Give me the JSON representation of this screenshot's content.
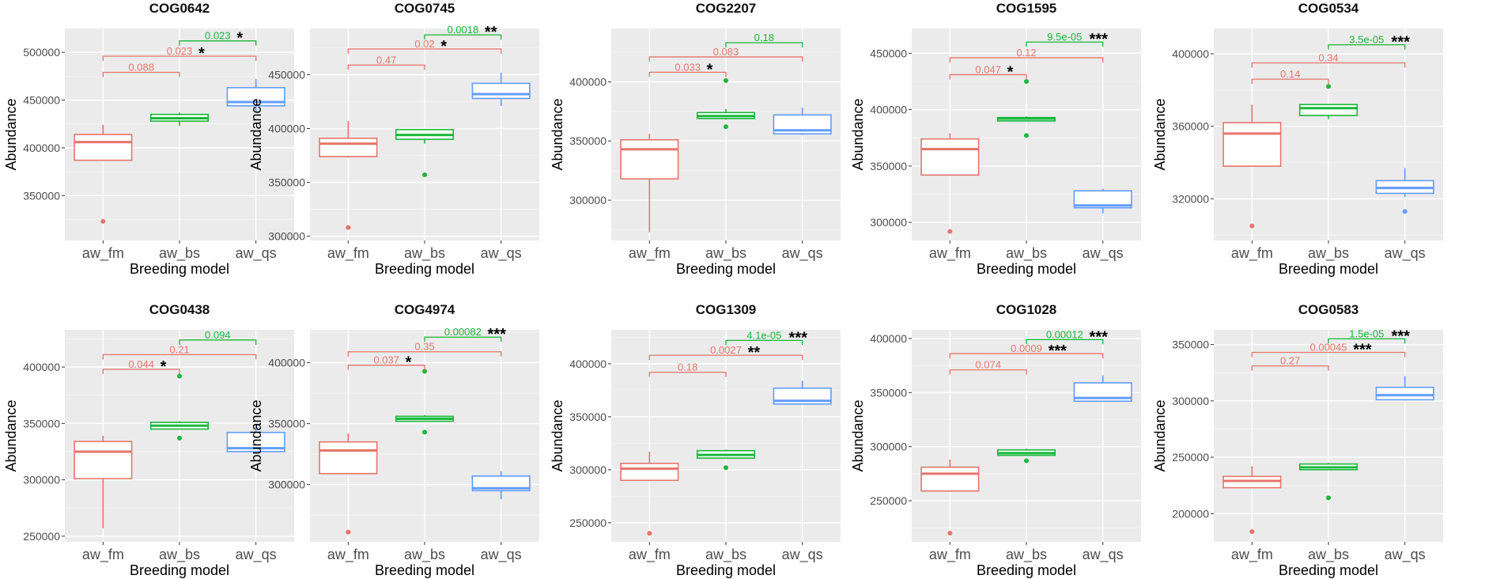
{
  "colors": {
    "aw_fm": "#E7756C",
    "aw_bs": "#18B83A",
    "aw_qs": "#619CFF",
    "panel": "#EBEBEB",
    "grid": "#FFFFFF"
  },
  "chart_data": [
    {
      "type": "box",
      "title": "COG0642",
      "xlabel": "Breeding model",
      "ylabel": "Abundance",
      "categories": [
        "aw_fm",
        "aw_bs",
        "aw_qs"
      ],
      "ylim": [
        303000,
        525000
      ],
      "yticks": [
        350000,
        400000,
        450000,
        500000
      ],
      "yticklabels": [
        "350000",
        "400000",
        "450000",
        "500000"
      ],
      "boxes": [
        {
          "min": 387000,
          "q1": 387000,
          "median": 406000,
          "q3": 414000,
          "max": 424000,
          "outliers": [
            323000
          ]
        },
        {
          "min": 423000,
          "q1": 428000,
          "median": 431000,
          "q3": 435000,
          "max": 437000,
          "outliers": []
        },
        {
          "min": 438000,
          "q1": 444000,
          "median": 448000,
          "q3": 463000,
          "max": 472000,
          "outliers": []
        }
      ],
      "comparisons": [
        {
          "from": "aw_fm",
          "to": "aw_bs",
          "p": "0.088",
          "sig": "",
          "color": "#E7756C",
          "y": 479000
        },
        {
          "from": "aw_fm",
          "to": "aw_qs",
          "p": "0.023",
          "sig": "*",
          "color": "#E7756C",
          "y": 496000
        },
        {
          "from": "aw_bs",
          "to": "aw_qs",
          "p": "0.023",
          "sig": "*",
          "color": "#18B83A",
          "y": 512000
        }
      ]
    },
    {
      "type": "box",
      "title": "COG0745",
      "xlabel": "Breeding model",
      "ylabel": "Abundance",
      "categories": [
        "aw_fm",
        "aw_bs",
        "aw_qs"
      ],
      "ylim": [
        296000,
        493000
      ],
      "yticks": [
        300000,
        350000,
        400000,
        450000
      ],
      "yticklabels": [
        "300000",
        "350000",
        "400000",
        "450000"
      ],
      "boxes": [
        {
          "min": 373000,
          "q1": 374000,
          "median": 386000,
          "q3": 391000,
          "max": 407000,
          "outliers": [
            308000
          ]
        },
        {
          "min": 386000,
          "q1": 390000,
          "median": 394000,
          "q3": 399000,
          "max": 399000,
          "outliers": [
            357000
          ]
        },
        {
          "min": 421000,
          "q1": 428000,
          "median": 432000,
          "q3": 442000,
          "max": 452000,
          "outliers": []
        }
      ],
      "comparisons": [
        {
          "from": "aw_fm",
          "to": "aw_bs",
          "p": "0.47",
          "sig": "",
          "color": "#E7756C",
          "y": 459000
        },
        {
          "from": "aw_fm",
          "to": "aw_qs",
          "p": "0.02",
          "sig": "*",
          "color": "#E7756C",
          "y": 474000
        },
        {
          "from": "aw_bs",
          "to": "aw_qs",
          "p": "0.0018",
          "sig": "**",
          "color": "#18B83A",
          "y": 487000
        }
      ]
    },
    {
      "type": "box",
      "title": "COG2207",
      "xlabel": "Breeding model",
      "ylabel": "Abundance",
      "categories": [
        "aw_fm",
        "aw_bs",
        "aw_qs"
      ],
      "ylim": [
        266000,
        445000
      ],
      "yticks": [
        300000,
        350000,
        400000
      ],
      "yticklabels": [
        "300000",
        "350000",
        "400000"
      ],
      "boxes": [
        {
          "min": 273000,
          "q1": 318000,
          "median": 343000,
          "q3": 351000,
          "max": 356000,
          "outliers": []
        },
        {
          "min": 368000,
          "q1": 369000,
          "median": 371000,
          "q3": 374000,
          "max": 377000,
          "outliers": [
            401000,
            362000
          ]
        },
        {
          "min": 355000,
          "q1": 356000,
          "median": 359000,
          "q3": 372000,
          "max": 378000,
          "outliers": []
        }
      ],
      "comparisons": [
        {
          "from": "aw_fm",
          "to": "aw_bs",
          "p": "0.033",
          "sig": "*",
          "color": "#E7756C",
          "y": 408000
        },
        {
          "from": "aw_fm",
          "to": "aw_qs",
          "p": "0.083",
          "sig": "",
          "color": "#E7756C",
          "y": 421000
        },
        {
          "from": "aw_bs",
          "to": "aw_qs",
          "p": "0.18",
          "sig": "",
          "color": "#18B83A",
          "y": 433000
        }
      ]
    },
    {
      "type": "box",
      "title": "COG1595",
      "xlabel": "Breeding model",
      "ylabel": "Abundance",
      "categories": [
        "aw_fm",
        "aw_bs",
        "aw_qs"
      ],
      "ylim": [
        284000,
        472000
      ],
      "yticks": [
        300000,
        350000,
        400000,
        450000
      ],
      "yticklabels": [
        "300000",
        "350000",
        "400000",
        "450000"
      ],
      "boxes": [
        {
          "min": 342000,
          "q1": 342000,
          "median": 365000,
          "q3": 374000,
          "max": 379000,
          "outliers": [
            292000
          ]
        },
        {
          "min": 390000,
          "q1": 390000,
          "median": 392000,
          "q3": 393000,
          "max": 394000,
          "outliers": [
            425000,
            377000
          ]
        },
        {
          "min": 308000,
          "q1": 313000,
          "median": 315000,
          "q3": 328000,
          "max": 330000,
          "outliers": []
        }
      ],
      "comparisons": [
        {
          "from": "aw_fm",
          "to": "aw_bs",
          "p": "0.047",
          "sig": "*",
          "color": "#E7756C",
          "y": 431000
        },
        {
          "from": "aw_fm",
          "to": "aw_qs",
          "p": "0.12",
          "sig": "",
          "color": "#E7756C",
          "y": 446000
        },
        {
          "from": "aw_bs",
          "to": "aw_qs",
          "p": "9.5e-05",
          "sig": "***",
          "color": "#18B83A",
          "y": 460000
        }
      ]
    },
    {
      "type": "box",
      "title": "COG0534",
      "xlabel": "Breeding model",
      "ylabel": "Abundance",
      "categories": [
        "aw_fm",
        "aw_bs",
        "aw_qs"
      ],
      "ylim": [
        297000,
        414000
      ],
      "yticks": [
        320000,
        360000,
        400000
      ],
      "yticklabels": [
        "320000",
        "360000",
        "400000"
      ],
      "boxes": [
        {
          "min": 338000,
          "q1": 338000,
          "median": 356000,
          "q3": 362000,
          "max": 372000,
          "outliers": [
            305000
          ]
        },
        {
          "min": 364000,
          "q1": 366000,
          "median": 370000,
          "q3": 372000,
          "max": 372000,
          "outliers": [
            382000
          ]
        },
        {
          "min": 321000,
          "q1": 323000,
          "median": 326000,
          "q3": 330000,
          "max": 337000,
          "outliers": [
            313000
          ]
        }
      ],
      "comparisons": [
        {
          "from": "aw_fm",
          "to": "aw_bs",
          "p": "0.14",
          "sig": "",
          "color": "#E7756C",
          "y": 386000
        },
        {
          "from": "aw_fm",
          "to": "aw_qs",
          "p": "0.34",
          "sig": "",
          "color": "#E7756C",
          "y": 395000
        },
        {
          "from": "aw_bs",
          "to": "aw_qs",
          "p": "3.5e-05",
          "sig": "***",
          "color": "#18B83A",
          "y": 405000
        }
      ]
    },
    {
      "type": "box",
      "title": "COG0438",
      "xlabel": "Breeding model",
      "ylabel": "Abundance",
      "categories": [
        "aw_fm",
        "aw_bs",
        "aw_qs"
      ],
      "ylim": [
        245000,
        433000
      ],
      "yticks": [
        250000,
        300000,
        350000,
        400000
      ],
      "yticklabels": [
        "250000",
        "300000",
        "350000",
        "400000"
      ],
      "boxes": [
        {
          "min": 257000,
          "q1": 301000,
          "median": 325000,
          "q3": 334000,
          "max": 339000,
          "outliers": []
        },
        {
          "min": 345000,
          "q1": 345000,
          "median": 348000,
          "q3": 351000,
          "max": 352000,
          "outliers": [
            392000,
            337000
          ]
        },
        {
          "min": 325000,
          "q1": 325000,
          "median": 328000,
          "q3": 342000,
          "max": 349000,
          "outliers": []
        }
      ],
      "comparisons": [
        {
          "from": "aw_fm",
          "to": "aw_bs",
          "p": "0.044",
          "sig": "*",
          "color": "#E7756C",
          "y": 398000
        },
        {
          "from": "aw_fm",
          "to": "aw_qs",
          "p": "0.21",
          "sig": "",
          "color": "#E7756C",
          "y": 411000
        },
        {
          "from": "aw_bs",
          "to": "aw_qs",
          "p": "0.094",
          "sig": "",
          "color": "#18B83A",
          "y": 424000
        }
      ]
    },
    {
      "type": "box",
      "title": "COG4974",
      "xlabel": "Breeding model",
      "ylabel": "Abundance",
      "categories": [
        "aw_fm",
        "aw_bs",
        "aw_qs"
      ],
      "ylim": [
        253000,
        427000
      ],
      "yticks": [
        300000,
        350000,
        400000
      ],
      "yticklabels": [
        "300000",
        "350000",
        "400000"
      ],
      "boxes": [
        {
          "min": 309000,
          "q1": 309000,
          "median": 328000,
          "q3": 335000,
          "max": 342000,
          "outliers": [
            261000
          ]
        },
        {
          "min": 352000,
          "q1": 352000,
          "median": 354000,
          "q3": 356000,
          "max": 357000,
          "outliers": [
            393000,
            343000
          ]
        },
        {
          "min": 288000,
          "q1": 295000,
          "median": 297000,
          "q3": 307000,
          "max": 311000,
          "outliers": []
        }
      ],
      "comparisons": [
        {
          "from": "aw_fm",
          "to": "aw_bs",
          "p": "0.037",
          "sig": "*",
          "color": "#E7756C",
          "y": 398000
        },
        {
          "from": "aw_fm",
          "to": "aw_qs",
          "p": "0.35",
          "sig": "",
          "color": "#E7756C",
          "y": 409000
        },
        {
          "from": "aw_bs",
          "to": "aw_qs",
          "p": "0.00082",
          "sig": "***",
          "color": "#18B83A",
          "y": 421000
        }
      ]
    },
    {
      "type": "box",
      "title": "COG1309",
      "xlabel": "Breeding model",
      "ylabel": "Abundance",
      "categories": [
        "aw_fm",
        "aw_bs",
        "aw_qs"
      ],
      "ylim": [
        232000,
        432000
      ],
      "yticks": [
        250000,
        300000,
        350000,
        400000
      ],
      "yticklabels": [
        "250000",
        "300000",
        "350000",
        "400000"
      ],
      "boxes": [
        {
          "min": 290000,
          "q1": 290000,
          "median": 301000,
          "q3": 306000,
          "max": 317000,
          "outliers": [
            240000
          ]
        },
        {
          "min": 311000,
          "q1": 311000,
          "median": 314000,
          "q3": 318000,
          "max": 319000,
          "outliers": [
            302000
          ]
        },
        {
          "min": 362000,
          "q1": 362000,
          "median": 365000,
          "q3": 377000,
          "max": 384000,
          "outliers": []
        }
      ],
      "comparisons": [
        {
          "from": "aw_fm",
          "to": "aw_bs",
          "p": "0.18",
          "sig": "",
          "color": "#E7756C",
          "y": 392000
        },
        {
          "from": "aw_fm",
          "to": "aw_qs",
          "p": "0.0027",
          "sig": "**",
          "color": "#E7756C",
          "y": 408000
        },
        {
          "from": "aw_bs",
          "to": "aw_qs",
          "p": "4.1e-05",
          "sig": "***",
          "color": "#18B83A",
          "y": 422000
        }
      ]
    },
    {
      "type": "box",
      "title": "COG1028",
      "xlabel": "Breeding model",
      "ylabel": "Abundance",
      "categories": [
        "aw_fm",
        "aw_bs",
        "aw_qs"
      ],
      "ylim": [
        212000,
        408000
      ],
      "yticks": [
        250000,
        300000,
        350000,
        400000
      ],
      "yticklabels": [
        "250000",
        "300000",
        "350000",
        "400000"
      ],
      "boxes": [
        {
          "min": 259000,
          "q1": 259000,
          "median": 275000,
          "q3": 281000,
          "max": 288000,
          "outliers": [
            220000
          ]
        },
        {
          "min": 292000,
          "q1": 292000,
          "median": 294000,
          "q3": 297000,
          "max": 298000,
          "outliers": [
            287000
          ]
        },
        {
          "min": 342000,
          "q1": 342000,
          "median": 345000,
          "q3": 359000,
          "max": 366000,
          "outliers": []
        }
      ],
      "comparisons": [
        {
          "from": "aw_fm",
          "to": "aw_bs",
          "p": "0.074",
          "sig": "",
          "color": "#E7756C",
          "y": 371000
        },
        {
          "from": "aw_fm",
          "to": "aw_qs",
          "p": "0.0009",
          "sig": "***",
          "color": "#E7756C",
          "y": 386000
        },
        {
          "from": "aw_bs",
          "to": "aw_qs",
          "p": "0.00012",
          "sig": "***",
          "color": "#18B83A",
          "y": 399000
        }
      ]
    },
    {
      "type": "box",
      "title": "COG0583",
      "xlabel": "Breeding model",
      "ylabel": "Abundance",
      "categories": [
        "aw_fm",
        "aw_bs",
        "aw_qs"
      ],
      "ylim": [
        175000,
        363000
      ],
      "yticks": [
        200000,
        250000,
        300000,
        350000
      ],
      "yticklabels": [
        "200000",
        "250000",
        "300000",
        "350000"
      ],
      "boxes": [
        {
          "min": 223000,
          "q1": 223000,
          "median": 229000,
          "q3": 233000,
          "max": 242000,
          "outliers": [
            184000
          ]
        },
        {
          "min": 239000,
          "q1": 239000,
          "median": 241000,
          "q3": 244000,
          "max": 245000,
          "outliers": [
            214000
          ]
        },
        {
          "min": 301000,
          "q1": 301000,
          "median": 305000,
          "q3": 312000,
          "max": 322000,
          "outliers": []
        }
      ],
      "comparisons": [
        {
          "from": "aw_fm",
          "to": "aw_bs",
          "p": "0.27",
          "sig": "",
          "color": "#E7756C",
          "y": 331000
        },
        {
          "from": "aw_fm",
          "to": "aw_qs",
          "p": "0.00045",
          "sig": "***",
          "color": "#E7756C",
          "y": 343000
        },
        {
          "from": "aw_bs",
          "to": "aw_qs",
          "p": "1.5e-05",
          "sig": "***",
          "color": "#18B83A",
          "y": 355000
        }
      ]
    }
  ]
}
